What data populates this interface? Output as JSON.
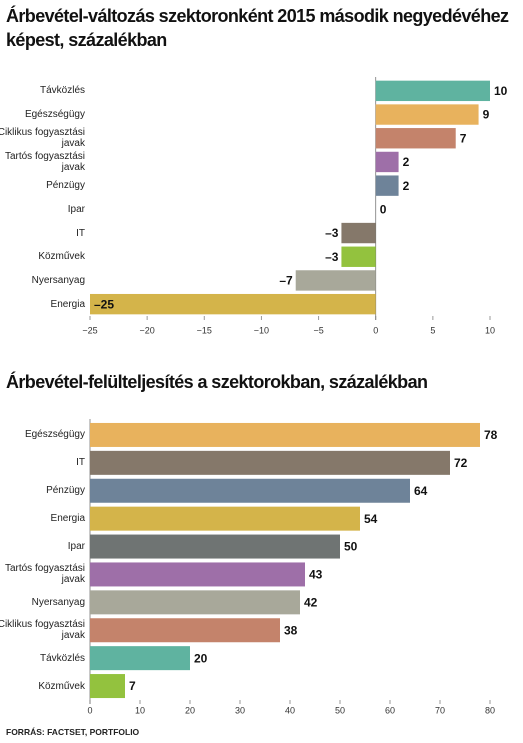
{
  "chart_data": [
    {
      "type": "bar",
      "orientation": "horizontal",
      "title": "Árbevétel-változás szektoronként 2015 második negyedévéhez képest, százalékban",
      "categories": [
        "Távközlés",
        "Egészségügy",
        "Ciklikus fogyasztási javak",
        "Tartós fogyasztási javak",
        "Pénzügy",
        "Ipar",
        "IT",
        "Közművek",
        "Nyersanyag",
        "Energia"
      ],
      "values": [
        10,
        9,
        7,
        2,
        2,
        0,
        -3,
        -3,
        -7,
        -25
      ],
      "value_labels": [
        "10",
        "9",
        "7",
        "2",
        "2",
        "0",
        "–3",
        "–3",
        "–7",
        "–25"
      ],
      "colors": [
        "#5fb3a0",
        "#e8b25d",
        "#c4836b",
        "#9e6fa8",
        "#6e8399",
        "#6f7473",
        "#85786a",
        "#93c23e",
        "#a8a89a",
        "#d4b44a"
      ],
      "xlim": [
        -25,
        10
      ],
      "xticks": [
        {
          "value": -25,
          "label": "−25"
        },
        {
          "value": -20,
          "label": "−20"
        },
        {
          "value": -15,
          "label": "−15"
        },
        {
          "value": -10,
          "label": "−10"
        },
        {
          "value": -5,
          "label": "−5"
        },
        0,
        5,
        10
      ]
    },
    {
      "type": "bar",
      "orientation": "horizontal",
      "title": "Árbevétel-felülteljesítés a szektorokban, százalékban",
      "categories": [
        "Egészségügy",
        "IT",
        "Pénzügy",
        "Energia",
        "Ipar",
        "Tartós fogyasztási javak",
        "Nyersanyag",
        "Ciklikus fogyasztási javak",
        "Távközlés",
        "Közművek"
      ],
      "values": [
        78,
        72,
        64,
        54,
        50,
        43,
        42,
        38,
        20,
        7
      ],
      "colors": [
        "#e8b25d",
        "#85786a",
        "#6e8399",
        "#d4b44a",
        "#6f7473",
        "#9e6fa8",
        "#a8a89a",
        "#c4836b",
        "#5fb3a0",
        "#93c23e"
      ],
      "xlim": [
        0,
        80
      ],
      "xticks": [
        0,
        10,
        20,
        30,
        40,
        50,
        60,
        70,
        80
      ]
    }
  ],
  "source": "FORRÁS: FACTSET, PORTFOLIO"
}
